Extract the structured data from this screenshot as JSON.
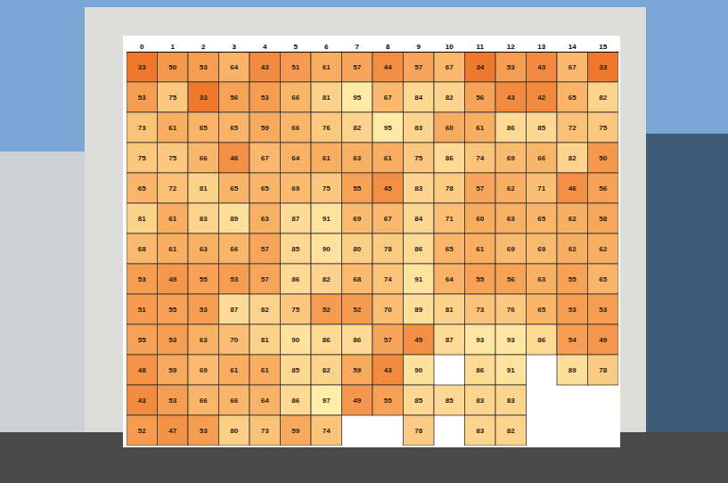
{
  "chart_data": {
    "type": "heatmap",
    "x": [
      0,
      1,
      2,
      3,
      4,
      5,
      6,
      7,
      8,
      9,
      10,
      11,
      12,
      13,
      14,
      15
    ],
    "cells": [
      [
        33,
        50,
        53,
        64,
        43,
        51,
        61,
        57,
        44,
        57,
        67,
        34,
        53,
        43,
        67,
        33
      ],
      [
        53,
        75,
        33,
        56,
        53,
        66,
        81,
        95,
        67,
        84,
        82,
        56,
        43,
        42,
        65,
        82
      ],
      [
        73,
        61,
        65,
        65,
        59,
        66,
        76,
        82,
        95,
        83,
        60,
        61,
        86,
        85,
        72,
        75
      ],
      [
        75,
        75,
        66,
        46,
        67,
        64,
        61,
        63,
        61,
        75,
        86,
        74,
        69,
        66,
        82,
        50
      ],
      [
        65,
        72,
        81,
        65,
        65,
        69,
        75,
        55,
        45,
        83,
        78,
        57,
        62,
        71,
        46,
        56
      ],
      [
        81,
        61,
        83,
        89,
        63,
        87,
        91,
        69,
        67,
        84,
        71,
        60,
        63,
        65,
        62,
        58
      ],
      [
        68,
        61,
        63,
        66,
        57,
        85,
        90,
        80,
        78,
        86,
        65,
        61,
        69,
        69,
        62,
        62
      ],
      [
        53,
        49,
        55,
        53,
        57,
        86,
        82,
        68,
        74,
        91,
        64,
        55,
        56,
        63,
        55,
        65
      ],
      [
        51,
        55,
        53,
        87,
        82,
        75,
        52,
        52,
        70,
        89,
        81,
        73,
        76,
        65,
        53,
        53
      ],
      [
        55,
        53,
        63,
        70,
        81,
        90,
        86,
        86,
        57,
        45,
        87,
        93,
        93,
        86,
        54,
        49
      ],
      [
        48,
        59,
        69,
        61,
        61,
        85,
        82,
        59,
        43,
        90,
        null,
        86,
        91,
        null,
        89,
        78
      ],
      [
        43,
        53,
        66,
        66,
        64,
        86,
        97,
        49,
        55,
        85,
        85,
        83,
        83,
        null,
        null,
        null
      ],
      [
        52,
        47,
        53,
        80,
        73,
        59,
        74,
        null,
        null,
        78,
        null,
        83,
        82,
        null,
        null,
        null
      ]
    ],
    "data_labels": true,
    "tick_labels": "x"
  }
}
